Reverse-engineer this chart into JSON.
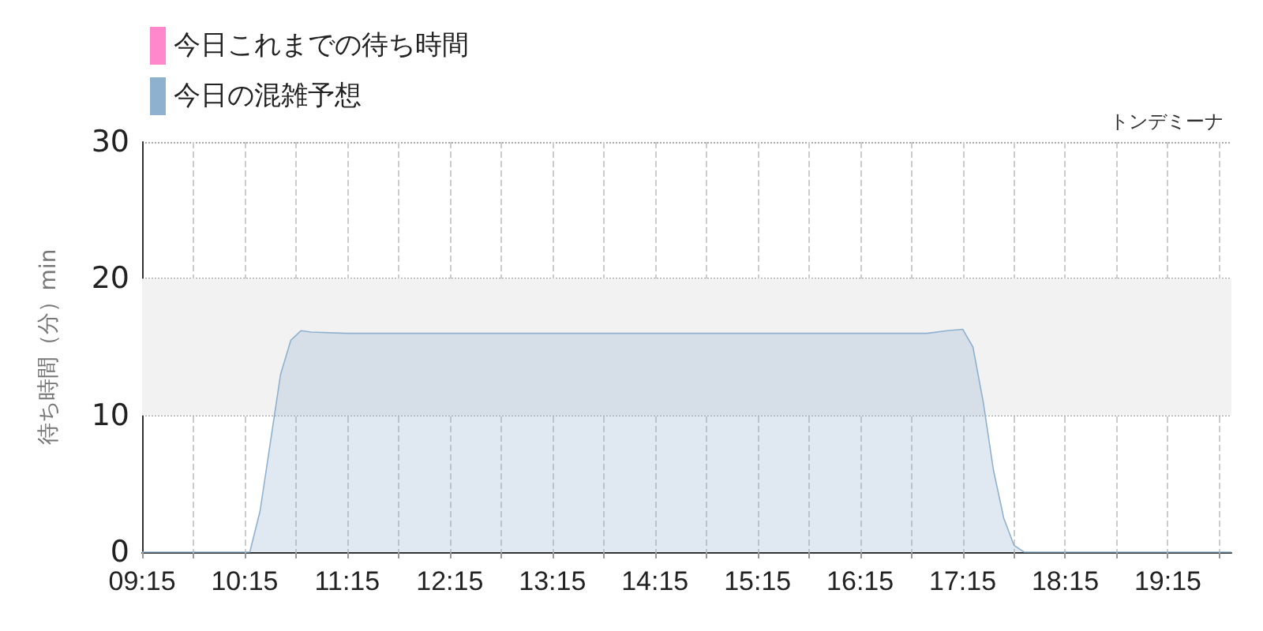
{
  "chart_data": {
    "type": "area",
    "title": "トンデミーナ",
    "ylabel": "待ち時間（分）min",
    "xlim": [
      9.25,
      19.87
    ],
    "ylim": [
      0,
      30
    ],
    "yticks": [
      0,
      10,
      20,
      30
    ],
    "xticks": [
      {
        "value": 9.25,
        "label": "09:15"
      },
      {
        "value": 9.75,
        "label": null
      },
      {
        "value": 10.25,
        "label": "10:15"
      },
      {
        "value": 10.75,
        "label": null
      },
      {
        "value": 11.25,
        "label": "11:15"
      },
      {
        "value": 11.75,
        "label": null
      },
      {
        "value": 12.25,
        "label": "12:15"
      },
      {
        "value": 12.75,
        "label": null
      },
      {
        "value": 13.25,
        "label": "13:15"
      },
      {
        "value": 13.75,
        "label": null
      },
      {
        "value": 14.25,
        "label": "14:15"
      },
      {
        "value": 14.75,
        "label": null
      },
      {
        "value": 15.25,
        "label": "15:15"
      },
      {
        "value": 15.75,
        "label": null
      },
      {
        "value": 16.25,
        "label": "16:15"
      },
      {
        "value": 16.75,
        "label": null
      },
      {
        "value": 17.25,
        "label": "17:15"
      },
      {
        "value": 17.75,
        "label": null
      },
      {
        "value": 18.25,
        "label": "18:15"
      },
      {
        "value": 18.75,
        "label": null
      },
      {
        "value": 19.25,
        "label": "19:15"
      },
      {
        "value": 19.75,
        "label": null
      }
    ],
    "grid": true,
    "legend": "top left",
    "marker": "none",
    "bands": [
      {
        "axis": "y",
        "from": 10,
        "to": 20,
        "color": "#f2f2f2"
      }
    ],
    "series": [
      {
        "name": "今日これまでの待ち時間",
        "color": "#ff88cc",
        "type": "line"
      },
      {
        "name": "今日の混雑予想",
        "color": "#8fb1d0",
        "x": [
          9.25,
          10.0,
          10.3,
          10.4,
          10.5,
          10.6,
          10.7,
          10.8,
          10.9,
          11.25,
          12.25,
          13.25,
          14.25,
          15.25,
          16.25,
          16.9,
          17.1,
          17.25,
          17.35,
          17.45,
          17.55,
          17.65,
          17.75,
          17.85,
          18.25,
          19.25,
          19.87
        ],
        "values": [
          0,
          0,
          0,
          3,
          8,
          13,
          15.5,
          16.2,
          16.1,
          16,
          16,
          16,
          16,
          16,
          16,
          16,
          16.2,
          16.3,
          15,
          11,
          6,
          2.5,
          0.5,
          0,
          0,
          0,
          0
        ]
      }
    ]
  }
}
